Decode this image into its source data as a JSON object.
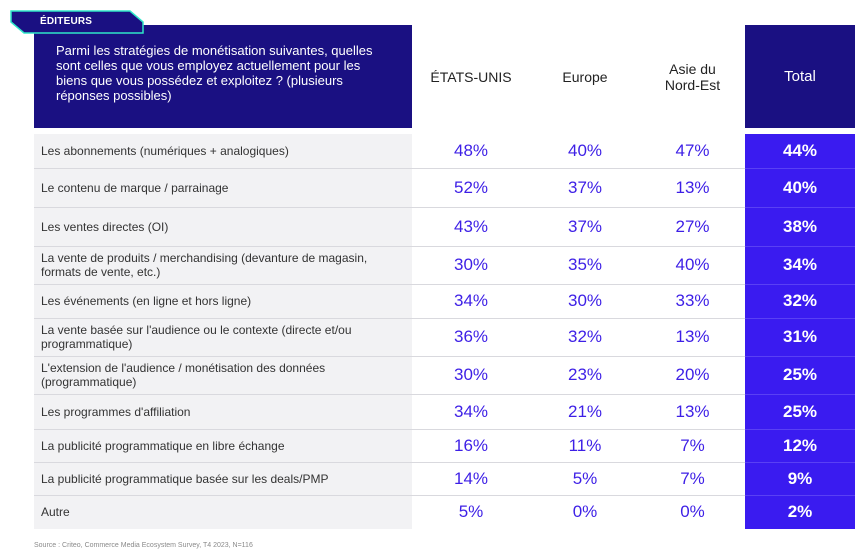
{
  "tag_label": "ÉDITEURS",
  "chart_data": {
    "type": "table",
    "question": "Parmi les stratégies de monétisation suivantes, quelles sont celles que vous employez actuellement pour les biens que vous possédez et exploitez ? (plusieurs réponses possibles)",
    "columns": [
      "ÉTATS-UNIS",
      "Europe",
      "Asie du Nord-Est",
      "Total"
    ],
    "rows": [
      {
        "label": "Les abonnements (numériques + analogiques)",
        "values": [
          "48%",
          "40%",
          "47%",
          "44%"
        ]
      },
      {
        "label": "Le contenu de marque / parrainage",
        "values": [
          "52%",
          "37%",
          "13%",
          "40%"
        ]
      },
      {
        "label": "Les ventes directes (OI)",
        "values": [
          "43%",
          "37%",
          "27%",
          "38%"
        ]
      },
      {
        "label": "La vente de produits / merchandising (devanture de magasin, formats de vente, etc.)",
        "values": [
          "30%",
          "35%",
          "40%",
          "34%"
        ]
      },
      {
        "label": "Les événements (en ligne et hors ligne)",
        "values": [
          "34%",
          "30%",
          "33%",
          "32%"
        ]
      },
      {
        "label": "La vente basée sur l'audience ou le contexte (directe et/ou programmatique)",
        "values": [
          "36%",
          "32%",
          "13%",
          "31%"
        ]
      },
      {
        "label": "L'extension de l'audience / monétisation des données (programmatique)",
        "values": [
          "30%",
          "23%",
          "20%",
          "25%"
        ]
      },
      {
        "label": "Les programmes d'affiliation",
        "values": [
          "34%",
          "21%",
          "13%",
          "25%"
        ]
      },
      {
        "label": "La publicité programmatique en libre échange",
        "values": [
          "16%",
          "11%",
          "7%",
          "12%"
        ]
      },
      {
        "label": "La publicité programmatique basée sur les deals/PMP",
        "values": [
          "14%",
          "5%",
          "7%",
          "9%"
        ]
      },
      {
        "label": "Autre",
        "values": [
          "5%",
          "0%",
          "0%",
          "2%"
        ]
      }
    ]
  },
  "source": "Source : Criteo, Commerce Media Ecosystem Survey, T4 2023, N=116",
  "colors": {
    "header_dark": "#1a1082",
    "total_column": "#3a1bf0",
    "value_text": "#3d1fe6",
    "tag_border": "#2ee6c8",
    "label_background": "#f2f2f4"
  }
}
